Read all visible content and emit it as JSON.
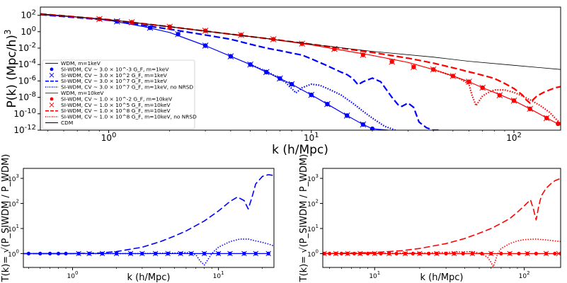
{
  "chart_data": [
    {
      "id": "main",
      "type": "line",
      "xscale": "log",
      "yscale": "log",
      "xlabel": "k (h/Mpc)",
      "ylabel": "P(k) (Mpc/h)",
      "ylabel_sup": "3",
      "xlim": [
        0.46,
        170
      ],
      "ylim": [
        1e-12,
        1000
      ],
      "xticks": [
        {
          "v": 1,
          "base": "10",
          "exp": "0"
        },
        {
          "v": 10,
          "base": "10",
          "exp": "1"
        },
        {
          "v": 100,
          "base": "10",
          "exp": "2"
        }
      ],
      "yticks": [
        {
          "v": 100,
          "base": "10",
          "exp": "2"
        },
        {
          "v": 1,
          "base": "10",
          "exp": "0"
        },
        {
          "v": 0.01,
          "base": "10",
          "exp": "-2"
        },
        {
          "v": 0.0001,
          "base": "10",
          "exp": "-4"
        },
        {
          "v": 1e-06,
          "base": "10",
          "exp": "-6"
        },
        {
          "v": 1e-08,
          "base": "10",
          "exp": "-8"
        },
        {
          "v": 1e-10,
          "base": "10",
          "exp": "-10"
        },
        {
          "v": 1e-12,
          "base": "10",
          "exp": "-12"
        }
      ],
      "legend_position": "center-left",
      "series": [
        {
          "name": "WDM, m=1keV",
          "color": "#0000ff",
          "style": "solid",
          "marker": "none",
          "x": [
            0.46,
            0.7,
            1,
            1.5,
            2,
            3,
            4,
            5,
            6,
            7,
            8,
            10,
            12,
            15,
            18,
            20,
            24
          ],
          "y": [
            120,
            60,
            25,
            4,
            0.8,
            0.02,
            0.001,
            0.0001,
            1.2e-05,
            2e-06,
            4e-07,
            2e-08,
            1.5e-09,
            6e-11,
            5e-12,
            1.5e-12,
            1e-12
          ]
        },
        {
          "name": "SI-WDM, CV ~ 3.0 × 10^-3 G_F, m=1keV",
          "color": "#0000ff",
          "style": "none",
          "marker": "circle",
          "x": [
            1.1,
            1.6,
            2.2,
            3,
            4,
            5,
            6,
            7,
            8,
            10,
            12,
            15,
            18,
            20
          ],
          "y": [
            18,
            3,
            0.5,
            0.02,
            0.001,
            0.0001,
            1.2e-05,
            2e-06,
            4e-07,
            2e-08,
            1.5e-09,
            6e-11,
            5e-12,
            1.5e-12
          ]
        },
        {
          "name": "SI-WDM, CV ~ 3.0 × 10^2 G_F, m=1keV",
          "color": "#0000ff",
          "style": "none",
          "marker": "x",
          "x": [
            1.1,
            1.6,
            2.2,
            3,
            4,
            5,
            6,
            7,
            8,
            10,
            12,
            15,
            18
          ],
          "y": [
            18,
            3,
            0.5,
            0.02,
            0.001,
            0.0001,
            1.2e-05,
            2e-06,
            4e-07,
            2e-08,
            1.5e-09,
            6e-11,
            5e-12
          ]
        },
        {
          "name": "SI-WDM, CV ~ 3.0 × 10^7 G_F, m=1keV",
          "color": "#0000ff",
          "style": "dashed",
          "marker": "none",
          "x": [
            0.46,
            1,
            2,
            3,
            4,
            5,
            6,
            7,
            8,
            9,
            10,
            12,
            14,
            15,
            16,
            17,
            18,
            20,
            22,
            25,
            27,
            28,
            30,
            32,
            34,
            37,
            40,
            43
          ],
          "y": [
            120,
            25,
            2,
            0.4,
            0.12,
            0.03,
            0.01,
            0.005,
            0.0025,
            0.0014,
            0.0005,
            7e-05,
            1.2e-05,
            6e-06,
            2e-06,
            3.5e-07,
            8e-07,
            2.2e-06,
            8e-07,
            1e-08,
            1e-09,
            8e-10,
            2e-09,
            6e-10,
            1e-11,
            2e-12,
            1e-12,
            1e-12
          ]
        },
        {
          "name": "SI-WDM, CV ~ 3.0 × 10^7 G_F, m=1keV, no NRSD",
          "color": "#0000ff",
          "style": "dotted",
          "marker": "none",
          "x": [
            5,
            6,
            7,
            7.5,
            8,
            8.4,
            9,
            10,
            11,
            12,
            14,
            16,
            18,
            20,
            23,
            26
          ],
          "y": [
            0.0001,
            1.5e-05,
            2e-06,
            6e-07,
            1.2e-07,
            3.5e-08,
            1.5e-07,
            4e-07,
            3e-07,
            1.2e-07,
            2e-08,
            2e-09,
            2e-10,
            3e-11,
            3e-12,
            1e-12
          ]
        },
        {
          "name": "WDM, m=10keV",
          "color": "#ff0000",
          "style": "solid",
          "marker": "none",
          "x": [
            0.46,
            1,
            2,
            4,
            6,
            10,
            20,
            30,
            40,
            50,
            60,
            70,
            80,
            100,
            120,
            150,
            170
          ],
          "y": [
            150,
            30,
            4,
            0.5,
            0.15,
            0.025,
            0.0013,
            0.00018,
            2.5e-05,
            4e-06,
            8e-07,
            1.5e-07,
            4e-08,
            4e-09,
            4e-10,
            2e-11,
            4e-12
          ]
        },
        {
          "name": "SI-WDM, CV ~ 1.0 × 10^-2 G_F, m=10keV",
          "color": "#ff0000",
          "style": "none",
          "marker": "circle",
          "x": [
            0.9,
            1.3,
            2,
            3,
            4.5,
            6.5,
            9,
            13,
            18,
            25,
            32,
            40,
            50,
            60,
            70,
            85,
            100,
            120,
            145,
            165
          ],
          "y": [
            35,
            14,
            4,
            1.3,
            0.4,
            0.12,
            0.035,
            0.008,
            0.0015,
            0.00022,
            5e-05,
            2.5e-05,
            4e-06,
            8e-07,
            1.5e-07,
            1.8e-08,
            4e-09,
            4e-10,
            3e-11,
            6e-12
          ]
        },
        {
          "name": "SI-WDM, CV ~ 1.0 × 10^5 G_F, m=10keV",
          "color": "#ff0000",
          "style": "none",
          "marker": "x",
          "x": [
            0.9,
            1.3,
            2,
            3,
            4.5,
            6.5,
            9,
            13,
            18,
            25,
            32,
            40,
            50,
            60,
            70,
            85,
            100,
            120,
            145
          ],
          "y": [
            35,
            14,
            4,
            1.3,
            0.4,
            0.12,
            0.035,
            0.008,
            0.0015,
            0.00022,
            5e-05,
            2.5e-05,
            4e-06,
            8e-07,
            1.5e-07,
            1.8e-08,
            4e-09,
            4e-10,
            3e-11
          ]
        },
        {
          "name": "SI-WDM, CV ~ 1.0 × 10^8 G_F, m=10keV",
          "color": "#ff0000",
          "style": "dashed",
          "marker": "none",
          "x": [
            0.46,
            1,
            2,
            4,
            6,
            10,
            20,
            30,
            40,
            50,
            60,
            70,
            80,
            90,
            100,
            110,
            115,
            120,
            125,
            130,
            140,
            150,
            160,
            170
          ],
          "y": [
            150,
            30,
            4,
            0.5,
            0.15,
            0.03,
            0.003,
            0.0006,
            0.00015,
            4e-05,
            1.3e-05,
            5e-06,
            2e-06,
            5e-07,
            1.2e-07,
            2e-08,
            5e-09,
            2e-09,
            6e-09,
            1.5e-08,
            4e-08,
            8e-08,
            1.5e-07,
            2e-07
          ]
        },
        {
          "name": "SI-WDM, CV ~ 1.0 × 10^8 G_F, m=10keV, no NRSD",
          "color": "#ff0000",
          "style": "dotted",
          "marker": "none",
          "x": [
            40,
            50,
            55,
            60,
            62,
            65,
            70,
            75,
            80,
            90,
            100,
            110,
            120,
            135,
            150,
            170
          ],
          "y": [
            2.5e-05,
            4e-06,
            1.5e-06,
            4e-07,
            2e-08,
            1e-09,
            1.5e-08,
            4e-08,
            8e-08,
            8e-08,
            4e-08,
            1.5e-08,
            5e-09,
            1e-09,
            1.5e-10,
            6e-12
          ]
        },
        {
          "name": "CDM",
          "color": "#000000",
          "style": "solid",
          "marker": "none",
          "x": [
            0.46,
            1,
            2,
            4,
            6,
            10,
            20,
            40,
            60,
            100,
            170
          ],
          "y": [
            150,
            30,
            4,
            0.5,
            0.15,
            0.03,
            0.004,
            0.0008,
            0.00025,
            8e-05,
            2.5e-05
          ]
        }
      ]
    },
    {
      "id": "ratio-1kev",
      "type": "line",
      "xscale": "log",
      "yscale": "log",
      "xlabel": "k (h/Mpc)",
      "ylabel": "T(k)= √(P_SIWDM / P_WDM)",
      "xlim": [
        0.46,
        24
      ],
      "ylim": [
        0.28,
        2500
      ],
      "xticks": [
        {
          "v": 1,
          "base": "10",
          "exp": "0"
        },
        {
          "v": 10,
          "base": "10",
          "exp": "1"
        }
      ],
      "yticks": [
        {
          "v": 1,
          "base": "10",
          "exp": "0"
        },
        {
          "v": 10,
          "base": "10",
          "exp": "1"
        },
        {
          "v": 100,
          "base": "10",
          "exp": "2"
        },
        {
          "v": 1000,
          "base": "10",
          "exp": "3"
        }
      ],
      "series": [
        {
          "name": "CV ~ 3.0 × 10^-3 G_F",
          "color": "#0000ff",
          "style": "solid",
          "marker": "circle",
          "x": [
            0.5,
            0.6,
            0.7,
            0.8,
            0.9,
            1.1,
            1.3,
            1.6,
            2,
            2.5,
            3,
            3.7,
            4.5,
            5.5,
            6.5,
            8,
            10,
            12,
            15,
            18,
            22
          ],
          "y": [
            1,
            1,
            1,
            1,
            1,
            1,
            1,
            1,
            1,
            1,
            1,
            1,
            1,
            1,
            1,
            1,
            1,
            1,
            1,
            1,
            1
          ]
        },
        {
          "name": "CV ~ 3.0 × 10^2 G_F",
          "color": "#0000ff",
          "style": "none",
          "marker": "x",
          "x": [
            1.1,
            1.3,
            1.6,
            2,
            2.5,
            3,
            3.7,
            4.5,
            5.5,
            6.5,
            8,
            10,
            12,
            15,
            18,
            22
          ],
          "y": [
            1,
            1,
            1,
            1,
            1,
            1,
            1,
            1,
            1,
            1,
            1,
            1,
            1,
            1,
            1,
            1
          ]
        },
        {
          "name": "CV ~ 3.0 × 10^7 G_F",
          "color": "#0000ff",
          "style": "dashed",
          "marker": "none",
          "x": [
            0.46,
            1,
            1.5,
            2,
            3,
            4,
            5,
            6,
            8,
            10,
            12,
            13.5,
            15,
            16,
            17,
            18,
            20,
            22,
            24
          ],
          "y": [
            1,
            1,
            1.05,
            1.2,
            1.8,
            3,
            5,
            8,
            20,
            50,
            120,
            180,
            130,
            60,
            180,
            600,
            1200,
            1400,
            1300
          ]
        },
        {
          "name": "CV ~ 3.0 × 10^7 G_F, no NRSD",
          "color": "#0000ff",
          "style": "dotted",
          "marker": "none",
          "x": [
            0.46,
            3,
            5,
            6,
            7,
            7.5,
            8,
            8.5,
            9,
            10,
            12,
            14,
            16,
            18,
            20,
            22,
            24
          ],
          "y": [
            1,
            1,
            1.05,
            1.1,
            0.9,
            0.5,
            0.35,
            0.6,
            1,
            1.8,
            3,
            3.8,
            3.8,
            3.2,
            2.8,
            2.4,
            2
          ]
        }
      ]
    },
    {
      "id": "ratio-10kev",
      "type": "line",
      "xscale": "log",
      "yscale": "log",
      "xlabel": "k (h/Mpc)",
      "ylabel": "T(k)= √(P_SIWDM / P_WDM)",
      "xlim": [
        4.5,
        175
      ],
      "ylim": [
        0.28,
        2500
      ],
      "xticks": [
        {
          "v": 10,
          "base": "10",
          "exp": "1"
        },
        {
          "v": 100,
          "base": "10",
          "exp": "2"
        }
      ],
      "yticks": [
        {
          "v": 1,
          "base": "10",
          "exp": "0"
        },
        {
          "v": 10,
          "base": "10",
          "exp": "1"
        },
        {
          "v": 100,
          "base": "10",
          "exp": "2"
        },
        {
          "v": 1000,
          "base": "10",
          "exp": "3"
        }
      ],
      "series": [
        {
          "name": "CV ~ 1.0 × 10^-2 G_F",
          "color": "#ff0000",
          "style": "solid",
          "marker": "circle",
          "x": [
            4.6,
            5,
            5.5,
            6,
            6.6,
            7.3,
            8,
            9,
            10,
            11,
            12.5,
            14,
            16,
            18,
            20,
            23,
            26,
            30,
            34,
            39,
            45,
            52,
            60,
            70,
            80,
            92,
            105,
            120,
            140,
            160,
            175
          ],
          "y": [
            1,
            1,
            1,
            1,
            1,
            1,
            1,
            1,
            1,
            1,
            1,
            1,
            1,
            1,
            1,
            1,
            1,
            1,
            1,
            1,
            1,
            1,
            1,
            1,
            1,
            1,
            1,
            1,
            1,
            1,
            1
          ]
        },
        {
          "name": "CV ~ 1.0 × 10^5 G_F",
          "color": "#ff0000",
          "style": "none",
          "marker": "x",
          "x": [
            4.6,
            5.5,
            6.6,
            8,
            10,
            12.5,
            16,
            20,
            26,
            34,
            45,
            60,
            80,
            105,
            140,
            170
          ],
          "y": [
            1,
            1,
            1,
            1,
            1,
            1,
            1,
            1,
            1,
            1,
            1,
            1,
            1,
            1,
            1,
            1
          ]
        },
        {
          "name": "CV ~ 1.0 × 10^8 G_F",
          "color": "#ff0000",
          "style": "dashed",
          "marker": "none",
          "x": [
            4.5,
            10,
            15,
            20,
            30,
            40,
            50,
            60,
            70,
            80,
            90,
            100,
            110,
            115,
            120,
            125,
            130,
            140,
            150,
            160,
            175
          ],
          "y": [
            1,
            1.1,
            1.3,
            1.6,
            2.5,
            4,
            6.5,
            10,
            16,
            25,
            45,
            80,
            140,
            60,
            22,
            80,
            200,
            400,
            600,
            800,
            1000
          ]
        },
        {
          "name": "CV ~ 1.0 × 10^8 G_F, no NRSD",
          "color": "#ff0000",
          "style": "dotted",
          "marker": "none",
          "x": [
            4.5,
            20,
            35,
            45,
            52,
            57,
            60,
            62,
            64,
            66,
            70,
            80,
            90,
            100,
            120,
            140,
            160,
            175
          ],
          "y": [
            1,
            1.05,
            1.15,
            1.2,
            1,
            0.7,
            0.45,
            0.3,
            0.5,
            0.9,
            1.6,
            2.5,
            3.2,
            3.6,
            3.8,
            3.5,
            3.2,
            3
          ]
        }
      ]
    }
  ]
}
